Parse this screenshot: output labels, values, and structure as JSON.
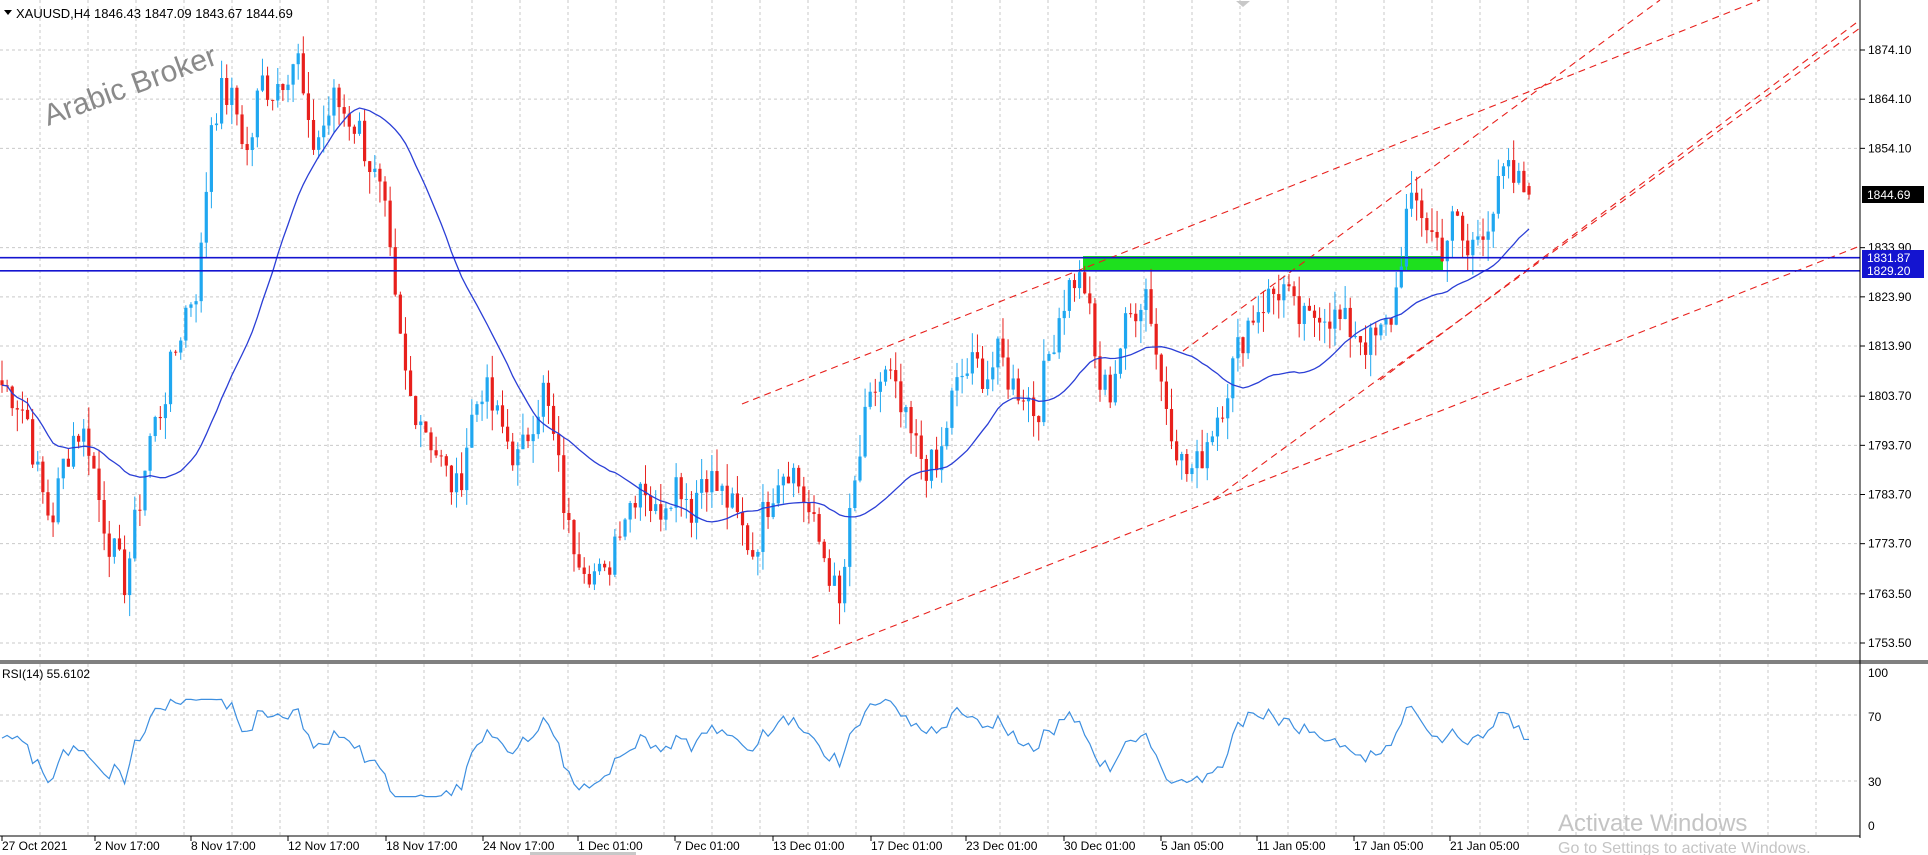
{
  "header": {
    "symbol_text": "XAUUSD,H4  1846.43 1847.09 1843.67 1844.69"
  },
  "watermark": {
    "text": "Arabic Broker"
  },
  "price_axis": {
    "labels": [
      "1874.10",
      "1864.10",
      "1854.10",
      "1833.90",
      "1823.90",
      "1813.90",
      "1803.70",
      "1793.70",
      "1783.70",
      "1773.70",
      "1763.50",
      "1753.50"
    ],
    "current_price": "1844.69",
    "line_a_price": "1831.87",
    "line_b_price": "1829.20"
  },
  "time_axis": {
    "labels": [
      "27 Oct 2021",
      "2 Nov 17:00",
      "8 Nov 17:00",
      "12 Nov 17:00",
      "18 Nov 17:00",
      "24 Nov 17:00",
      "1 Dec 01:00",
      "7 Dec 01:00",
      "13 Dec 01:00",
      "17 Dec 01:00",
      "23 Dec 01:00",
      "30 Dec 01:00",
      "5 Jan 05:00",
      "11 Jan 05:00",
      "17 Jan 05:00",
      "21 Jan 05:00"
    ]
  },
  "rsi": {
    "label": "RSI(14) 55.6102",
    "levels": [
      "100",
      "70",
      "30",
      "0"
    ]
  },
  "os_overlay": {
    "title": "Activate Windows",
    "subtitle": "Go to Settings to activate Windows."
  },
  "colors": {
    "bull": "#1fa7f0",
    "bear": "#e8201c",
    "ma": "#2b3fd6",
    "trend": "#e8201c",
    "zone": "#1ee01e",
    "hline": "#1414d0",
    "rsi_line": "#3d8fe0"
  },
  "chart_data": {
    "type": "candlestick",
    "symbol": "XAUUSD",
    "timeframe": "H4",
    "last_bar": {
      "open": 1846.43,
      "high": 1847.09,
      "low": 1843.67,
      "close": 1844.69
    },
    "approx_close_path": [
      1806,
      1804,
      1800,
      1786,
      1778,
      1790,
      1797,
      1795,
      1781,
      1772,
      1766,
      1780,
      1795,
      1802,
      1812,
      1822,
      1827,
      1860,
      1866,
      1862,
      1852,
      1868,
      1866,
      1870,
      1873,
      1854,
      1858,
      1864,
      1861,
      1858,
      1850,
      1842,
      1820,
      1804,
      1800,
      1794,
      1788,
      1784,
      1798,
      1806,
      1800,
      1795,
      1790,
      1799,
      1805,
      1792,
      1776,
      1772,
      1768,
      1766,
      1778,
      1782,
      1788,
      1779,
      1784,
      1787,
      1781,
      1789,
      1785,
      1782,
      1777,
      1772,
      1781,
      1788,
      1790,
      1784,
      1776,
      1770,
      1760,
      1781,
      1797,
      1806,
      1808,
      1800,
      1794,
      1790,
      1788,
      1802,
      1808,
      1810,
      1808,
      1812,
      1806,
      1805,
      1800,
      1812,
      1822,
      1828,
      1826,
      1806,
      1805,
      1816,
      1822,
      1826,
      1808,
      1798,
      1788,
      1789,
      1796,
      1802,
      1810,
      1818,
      1822,
      1824,
      1826,
      1820,
      1818,
      1822,
      1820,
      1818,
      1817,
      1814,
      1816,
      1821,
      1840,
      1843,
      1837,
      1834,
      1840,
      1832,
      1838,
      1841,
      1849,
      1847,
      1844.69
    ],
    "ma_period_shown": true,
    "horizontal_lines": [
      1831.87,
      1829.2
    ],
    "y_range": [
      1751,
      1880
    ],
    "rsi": {
      "period": 14,
      "last": 55.6102,
      "levels": [
        70,
        30
      ]
    }
  }
}
